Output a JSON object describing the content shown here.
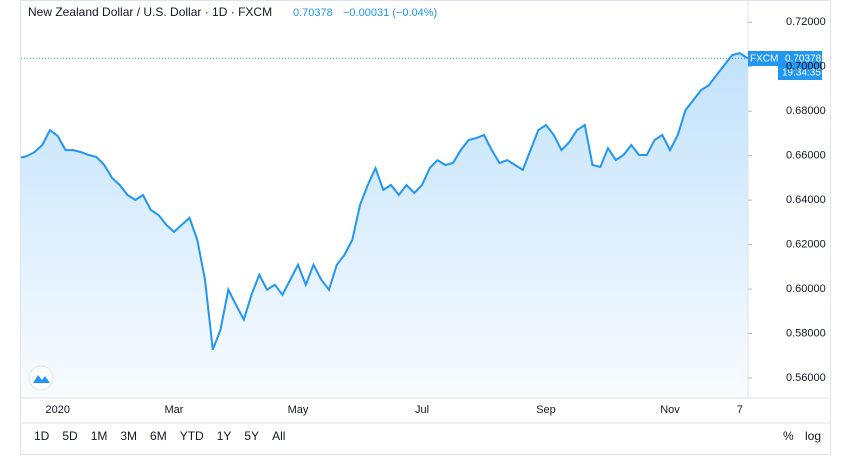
{
  "header": {
    "title": "New Zealand Dollar / U.S. Dollar · 1D · FXCM",
    "last": "0.70378",
    "change": "−0.00031 (−0.04%)"
  },
  "price_tag": {
    "source": "FXCM",
    "countdown": "19:34:35"
  },
  "toolbar": {
    "ranges": [
      "1D",
      "5D",
      "1M",
      "3M",
      "6M",
      "YTD",
      "1Y",
      "5Y",
      "All"
    ],
    "percent": "%",
    "log": "log"
  },
  "chart_data": {
    "type": "area",
    "color": "#2196f3",
    "categories": [
      null,
      null,
      null,
      null,
      null,
      "2020",
      null,
      null,
      null,
      null,
      null,
      null,
      null,
      null,
      null,
      null,
      null,
      null,
      null,
      null,
      "Mar",
      null,
      null,
      null,
      null,
      null,
      null,
      null,
      null,
      null,
      null,
      null,
      null,
      null,
      null,
      null,
      "May",
      null,
      null,
      null,
      null,
      null,
      null,
      null,
      null,
      null,
      null,
      null,
      null,
      null,
      null,
      null,
      "Jul",
      null,
      null,
      null,
      null,
      null,
      null,
      null,
      null,
      null,
      null,
      null,
      null,
      null,
      null,
      null,
      "Sep",
      null,
      null,
      null,
      null,
      null,
      null,
      null,
      null,
      null,
      null,
      null,
      null,
      null,
      null,
      null,
      "Nov",
      null,
      null,
      null,
      null,
      null,
      null,
      null,
      null,
      "7",
      null
    ],
    "values": [
      0.6589,
      0.6598,
      0.6616,
      0.6648,
      0.6715,
      0.6688,
      0.6625,
      0.6625,
      0.6616,
      0.6603,
      0.6594,
      0.6558,
      0.65,
      0.6468,
      0.6423,
      0.6401,
      0.6423,
      0.6356,
      0.6333,
      0.6289,
      0.6257,
      0.6289,
      0.632,
      0.6221,
      0.6042,
      0.5727,
      0.5817,
      0.5997,
      0.5929,
      0.5862,
      0.5974,
      0.6064,
      0.5997,
      0.6019,
      0.5974,
      0.6042,
      0.6109,
      0.6019,
      0.6109,
      0.6042,
      0.5997,
      0.6109,
      0.6154,
      0.6221,
      0.6378,
      0.6468,
      0.6544,
      0.6446,
      0.6468,
      0.6423,
      0.6468,
      0.6432,
      0.6468,
      0.6544,
      0.658,
      0.6558,
      0.6567,
      0.6625,
      0.667,
      0.6679,
      0.6693,
      0.6625,
      0.6567,
      0.658,
      0.6558,
      0.6536,
      0.6625,
      0.6715,
      0.6738,
      0.6693,
      0.6625,
      0.6661,
      0.6715,
      0.6738,
      0.6558,
      0.6549,
      0.6634,
      0.658,
      0.6603,
      0.6648,
      0.6603,
      0.6603,
      0.667,
      0.6693,
      0.6625,
      0.6693,
      0.6805,
      0.685,
      0.6895,
      0.6917,
      0.6962,
      0.7007,
      0.7052,
      0.7061,
      0.70378
    ],
    "ylim": [
      0.551,
      0.73
    ],
    "yticks": [
      {
        "value": 0.56,
        "label": "0.56000"
      },
      {
        "value": 0.58,
        "label": "0.58000"
      },
      {
        "value": 0.6,
        "label": "0.60000"
      },
      {
        "value": 0.62,
        "label": "0.62000"
      },
      {
        "value": 0.64,
        "label": "0.64000"
      },
      {
        "value": 0.66,
        "label": "0.66000"
      },
      {
        "value": 0.68,
        "label": "0.68000"
      },
      {
        "value": 0.7,
        "label": "0.70000"
      },
      {
        "value": 0.72,
        "label": "0.72000"
      }
    ],
    "grid": false
  }
}
